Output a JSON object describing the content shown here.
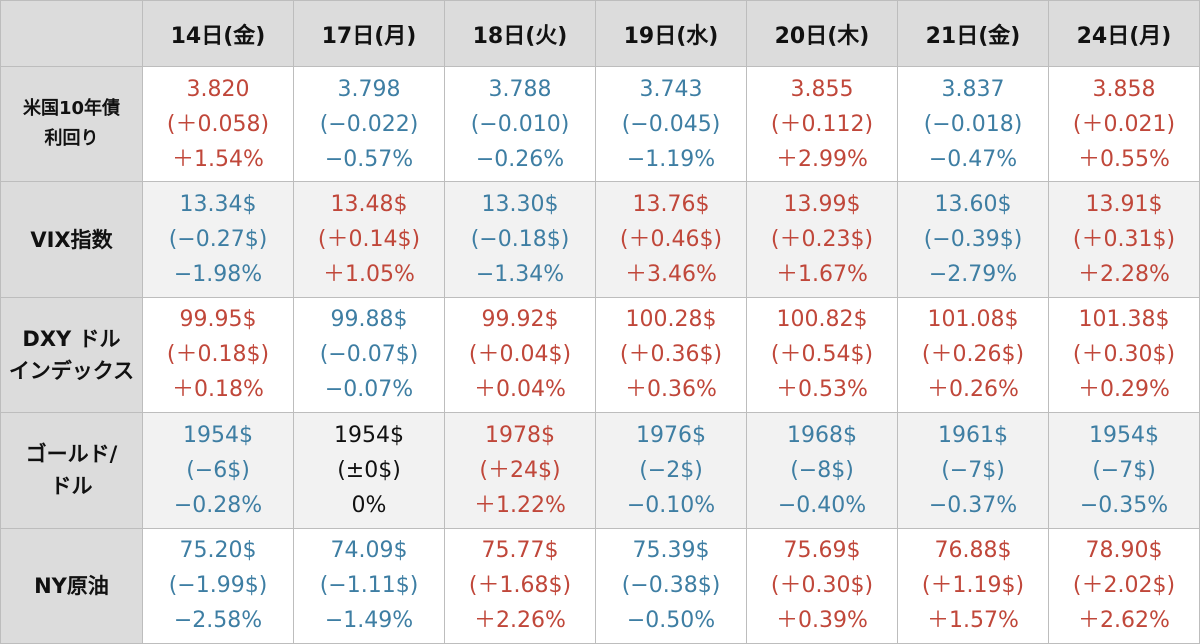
{
  "header": {
    "days": [
      "14日(金)",
      "17日(月)",
      "18日(火)",
      "19日(水)",
      "20日(木)",
      "21日(金)",
      "24日(月)"
    ]
  },
  "colors": {
    "up": "#c0473a",
    "down": "#3e7ea3",
    "flat": "#111111",
    "label_bg": "#dcdcdc",
    "row_shade": "#f2f2f2"
  },
  "rows": [
    {
      "label_lines": [
        "米国10年債",
        "利回り"
      ],
      "cells": [
        {
          "value": "3.820",
          "change": "(＋0.058)",
          "pct": "＋1.54%",
          "trend": "up"
        },
        {
          "value": "3.798",
          "change": "(−0.022)",
          "pct": "−0.57%",
          "trend": "down"
        },
        {
          "value": "3.788",
          "change": "(−0.010)",
          "pct": "−0.26%",
          "trend": "down"
        },
        {
          "value": "3.743",
          "change": "(−0.045)",
          "pct": "−1.19%",
          "trend": "down"
        },
        {
          "value": "3.855",
          "change": "(＋0.112)",
          "pct": "＋2.99%",
          "trend": "up"
        },
        {
          "value": "3.837",
          "change": "(−0.018)",
          "pct": "−0.47%",
          "trend": "down"
        },
        {
          "value": "3.858",
          "change": "(＋0.021)",
          "pct": "＋0.55%",
          "trend": "up"
        }
      ]
    },
    {
      "label_lines": [
        "VIX指数"
      ],
      "cells": [
        {
          "value": "13.34$",
          "change": "(−0.27$)",
          "pct": "−1.98%",
          "trend": "down"
        },
        {
          "value": "13.48$",
          "change": "(＋0.14$)",
          "pct": "＋1.05%",
          "trend": "up"
        },
        {
          "value": "13.30$",
          "change": "(−0.18$)",
          "pct": "−1.34%",
          "trend": "down"
        },
        {
          "value": "13.76$",
          "change": "(＋0.46$)",
          "pct": "＋3.46%",
          "trend": "up"
        },
        {
          "value": "13.99$",
          "change": "(＋0.23$)",
          "pct": "＋1.67%",
          "trend": "up"
        },
        {
          "value": "13.60$",
          "change": "(−0.39$)",
          "pct": "−2.79%",
          "trend": "down"
        },
        {
          "value": "13.91$",
          "change": "(＋0.31$)",
          "pct": "＋2.28%",
          "trend": "up"
        }
      ]
    },
    {
      "label_lines": [
        "DXY ドル",
        "インデックス"
      ],
      "cells": [
        {
          "value": "99.95$",
          "change": "(＋0.18$)",
          "pct": "＋0.18%",
          "trend": "up"
        },
        {
          "value": "99.88$",
          "change": "(−0.07$)",
          "pct": "−0.07%",
          "trend": "down"
        },
        {
          "value": "99.92$",
          "change": "(＋0.04$)",
          "pct": "＋0.04%",
          "trend": "up"
        },
        {
          "value": "100.28$",
          "change": "(＋0.36$)",
          "pct": "＋0.36%",
          "trend": "up"
        },
        {
          "value": "100.82$",
          "change": "(＋0.54$)",
          "pct": "＋0.53%",
          "trend": "up"
        },
        {
          "value": "101.08$",
          "change": "(＋0.26$)",
          "pct": "＋0.26%",
          "trend": "up"
        },
        {
          "value": "101.38$",
          "change": "(＋0.30$)",
          "pct": "＋0.29%",
          "trend": "up"
        }
      ]
    },
    {
      "label_lines": [
        "ゴールド/",
        "ドル"
      ],
      "cells": [
        {
          "value": "1954$",
          "change": "(−6$)",
          "pct": "−0.28%",
          "trend": "down"
        },
        {
          "value": "1954$",
          "change": "(±0$)",
          "pct": "0%",
          "trend": "flat"
        },
        {
          "value": "1978$",
          "change": "(＋24$)",
          "pct": "＋1.22%",
          "trend": "up"
        },
        {
          "value": "1976$",
          "change": "(−2$)",
          "pct": "−0.10%",
          "trend": "down"
        },
        {
          "value": "1968$",
          "change": "(−8$)",
          "pct": "−0.40%",
          "trend": "down"
        },
        {
          "value": "1961$",
          "change": "(−7$)",
          "pct": "−0.37%",
          "trend": "down"
        },
        {
          "value": "1954$",
          "change": "(−7$)",
          "pct": "−0.35%",
          "trend": "down"
        }
      ]
    },
    {
      "label_lines": [
        "NY原油"
      ],
      "cells": [
        {
          "value": "75.20$",
          "change": "(−1.99$)",
          "pct": "−2.58%",
          "trend": "down"
        },
        {
          "value": "74.09$",
          "change": "(−1.11$)",
          "pct": "−1.49%",
          "trend": "down"
        },
        {
          "value": "75.77$",
          "change": "(＋1.68$)",
          "pct": "＋2.26%",
          "trend": "up"
        },
        {
          "value": "75.39$",
          "change": "(−0.38$)",
          "pct": "−0.50%",
          "trend": "down"
        },
        {
          "value": "75.69$",
          "change": "(＋0.30$)",
          "pct": "＋0.39%",
          "trend": "up"
        },
        {
          "value": "76.88$",
          "change": "(＋1.19$)",
          "pct": "＋1.57%",
          "trend": "up"
        },
        {
          "value": "78.90$",
          "change": "(＋2.02$)",
          "pct": "＋2.62%",
          "trend": "up"
        }
      ]
    }
  ]
}
